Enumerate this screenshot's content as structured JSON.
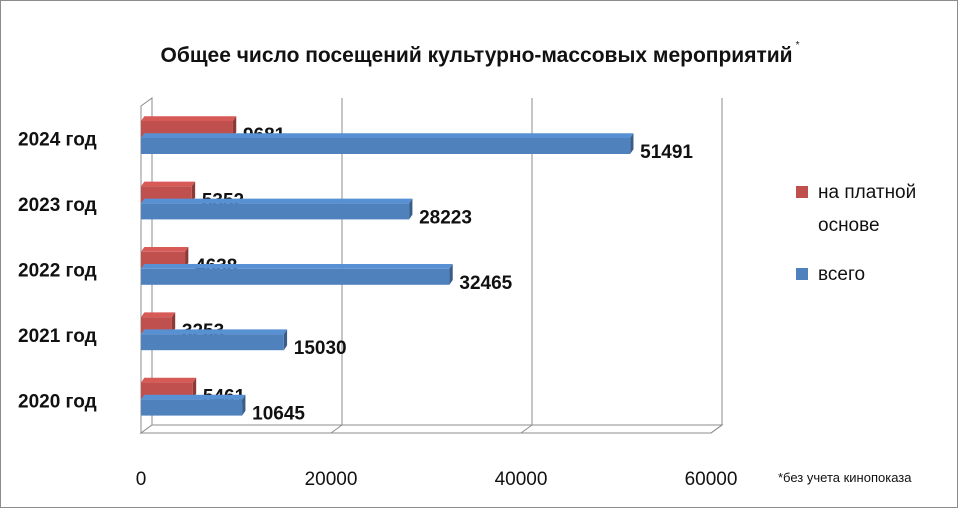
{
  "chart_data": {
    "type": "bar",
    "orientation": "horizontal",
    "title": "Общее число посещений культурно-массовых мероприятий",
    "title_mark": "*",
    "categories": [
      "2020 год",
      "2021 год",
      "2022 год",
      "2023 год",
      "2024 год"
    ],
    "series": [
      {
        "name": "на платной основе",
        "color": "#c0504d",
        "values": [
          5461,
          3253,
          4638,
          5352,
          9681
        ]
      },
      {
        "name": "всего",
        "color": "#4f81bd",
        "values": [
          10645,
          15030,
          32465,
          28223,
          51491
        ]
      }
    ],
    "xlim": [
      0,
      60000
    ],
    "x_ticks": [
      "0",
      "20000",
      "40000",
      "60000"
    ],
    "grid": true,
    "legend_position": "right",
    "note": "*без учета кинопоказа"
  }
}
